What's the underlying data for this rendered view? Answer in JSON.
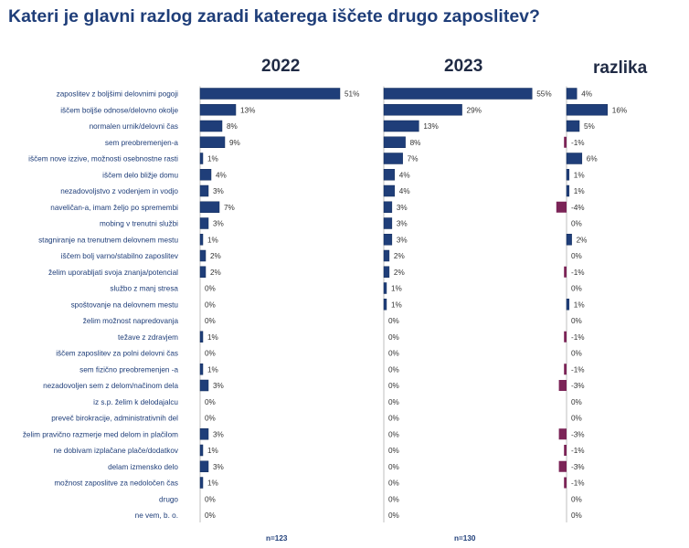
{
  "chart_data": {
    "type": "bar",
    "title": "Kateri je glavni razlog zaradi katerega iščete drugo zaposlitev?",
    "categories": [
      "zaposlitev z boljšimi delovnimi pogoji",
      "iščem boljše odnose/delovno okolje",
      "normalen urnik/delovni čas",
      "sem preobremenjen-a",
      "iščem nove izzive, možnosti osebnostne rasti",
      "iščem delo bližje domu",
      "nezadovoljstvo z vodenjem in vodjo",
      "naveličan-a, imam željo po spremembi",
      "mobing v trenutni službi",
      "stagniranje na trenutnem delovnem mestu",
      "iščem bolj varno/stabilno zaposlitev",
      "želim uporabljati svoja znanja/potencial",
      "službo z manj stresa",
      "spoštovanje na delovnem mestu",
      "želim možnost napredovanja",
      "težave z zdravjem",
      "iščem zaposlitev za polni delovni čas",
      "sem fizično preobremenjen -a",
      "nezadovoljen sem z delom/načinom dela",
      "iz s.p. želim k delodajalcu",
      "preveč birokracije, administrativnih del",
      "želim pravično razmerje med delom in plačilom",
      "ne dobivam izplačane plače/dodatkov",
      "delam izmensko delo",
      "možnost zaposlitve za nedoločen čas",
      "drugo",
      "ne vem, b. o."
    ],
    "series": [
      {
        "name": "2022",
        "values": [
          51,
          13,
          8,
          9,
          1,
          4,
          3,
          7,
          3,
          1,
          2,
          2,
          0,
          0,
          0,
          1,
          0,
          1,
          3,
          0,
          0,
          3,
          1,
          3,
          1,
          0,
          0
        ],
        "labels": [
          "51%",
          "13%",
          "8%",
          "9%",
          "1%",
          "4%",
          "3%",
          "7%",
          "3%",
          "1%",
          "2%",
          "2%",
          "0%",
          "0%",
          "0%",
          "1%",
          "0%",
          "1%",
          "3%",
          "0%",
          "0%",
          "3%",
          "1%",
          "3%",
          "1%",
          "0%",
          "0%"
        ],
        "note": "n=123"
      },
      {
        "name": "2023",
        "values": [
          55,
          29,
          13,
          8,
          7,
          4,
          4,
          3,
          3,
          3,
          2,
          2,
          1,
          1,
          0,
          0,
          0,
          0,
          0,
          0,
          0,
          0,
          0,
          0,
          0,
          0,
          0
        ],
        "labels": [
          "55%",
          "29%",
          "13%",
          "8%",
          "7%",
          "4%",
          "4%",
          "3%",
          "3%",
          "3%",
          "2%",
          "2%",
          "1%",
          "1%",
          "0%",
          "0%",
          "0%",
          "0%",
          "0%",
          "0%",
          "0%",
          "0%",
          "0%",
          "0%",
          "0%",
          "0%",
          "0%"
        ],
        "note": "n=130"
      },
      {
        "name": "razlika",
        "values": [
          4,
          16,
          5,
          -1,
          6,
          1,
          1,
          -4,
          0,
          2,
          0,
          -1,
          0,
          1,
          0,
          -1,
          0,
          -1,
          -3,
          0,
          0,
          -3,
          -1,
          -3,
          -1,
          0,
          0
        ],
        "labels": [
          "4%",
          "16%",
          "5%",
          "-1%",
          "6%",
          "1%",
          "1%",
          "-4%",
          "0%",
          "2%",
          "0%",
          "-1%",
          "0%",
          "1%",
          "0%",
          "-1%",
          "0%",
          "-1%",
          "-3%",
          "0%",
          "0%",
          "-3%",
          "-1%",
          "-3%",
          "-1%",
          "0%",
          "0%"
        ]
      }
    ],
    "colors": {
      "positive": "#1F3E79",
      "negative": "#7B2457",
      "axis": "#BFBFBF"
    }
  }
}
